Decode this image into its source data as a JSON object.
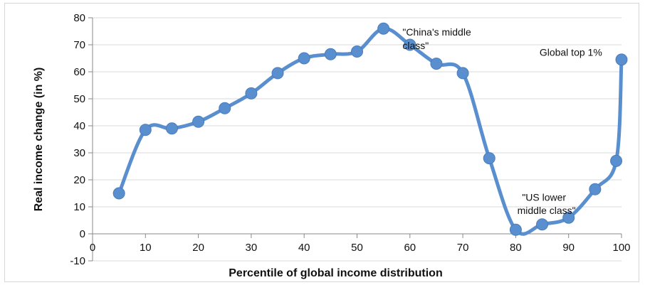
{
  "chart_data": {
    "type": "line",
    "title": "",
    "xlabel": "Percentile of  global income distribution",
    "ylabel": "Real income change (in %)",
    "xlim": [
      0,
      100
    ],
    "ylim": [
      -10,
      80
    ],
    "x_ticks": [
      0,
      10,
      20,
      30,
      40,
      50,
      60,
      70,
      80,
      90,
      100
    ],
    "y_ticks": [
      -10,
      0,
      10,
      20,
      30,
      40,
      50,
      60,
      70,
      80
    ],
    "grid": "horizontal",
    "legend": "none",
    "series": [
      {
        "x": [
          5,
          10,
          15,
          20,
          25,
          30,
          35,
          40,
          45,
          50,
          55,
          60,
          65,
          70,
          75,
          80,
          85,
          90,
          95,
          99,
          100
        ],
        "y": [
          15,
          38.5,
          39,
          41.5,
          46.5,
          52,
          59.5,
          65,
          66.5,
          67.5,
          76,
          70,
          63,
          59.5,
          28,
          1.5,
          3.5,
          6,
          16.5,
          27,
          64.5
        ],
        "color": "#5a8fcf"
      }
    ],
    "annotations": [
      {
        "text": "\"China's middle",
        "x": 58.6,
        "y": 73.4
      },
      {
        "text": "class\"",
        "x": 58.6,
        "y": 68.4
      },
      {
        "text": "Global top 1%",
        "x": 84.5,
        "y": 65.9
      },
      {
        "text": "\"US lower",
        "x": 81.2,
        "y": 12.2
      },
      {
        "text": "middle class\"",
        "x": 80.3,
        "y": 7.4
      }
    ]
  }
}
